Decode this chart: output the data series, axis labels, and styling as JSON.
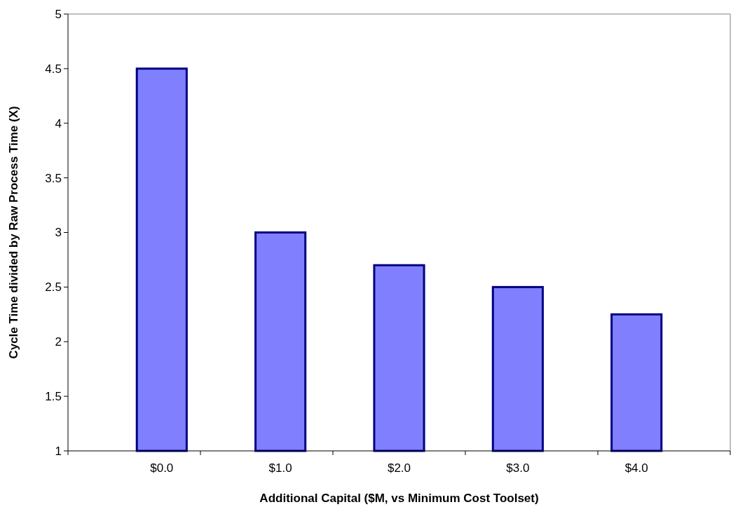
{
  "chart_data": {
    "type": "bar",
    "xlabel": "Additional Capital ($M, vs Minimum Cost Toolset)",
    "ylabel": "Cycle Time divided by Raw Process Time (X)",
    "categories": [
      "$0.0",
      "$1.0",
      "$2.0",
      "$3.0",
      "$4.0"
    ],
    "values": [
      4.5,
      3.0,
      2.7,
      2.5,
      2.25
    ],
    "color": "#8080ff",
    "ylim": [
      1,
      5
    ],
    "yticks": [
      1,
      1.5,
      2,
      2.5,
      3,
      3.5,
      4,
      4.5,
      5
    ],
    "grid": false
  }
}
